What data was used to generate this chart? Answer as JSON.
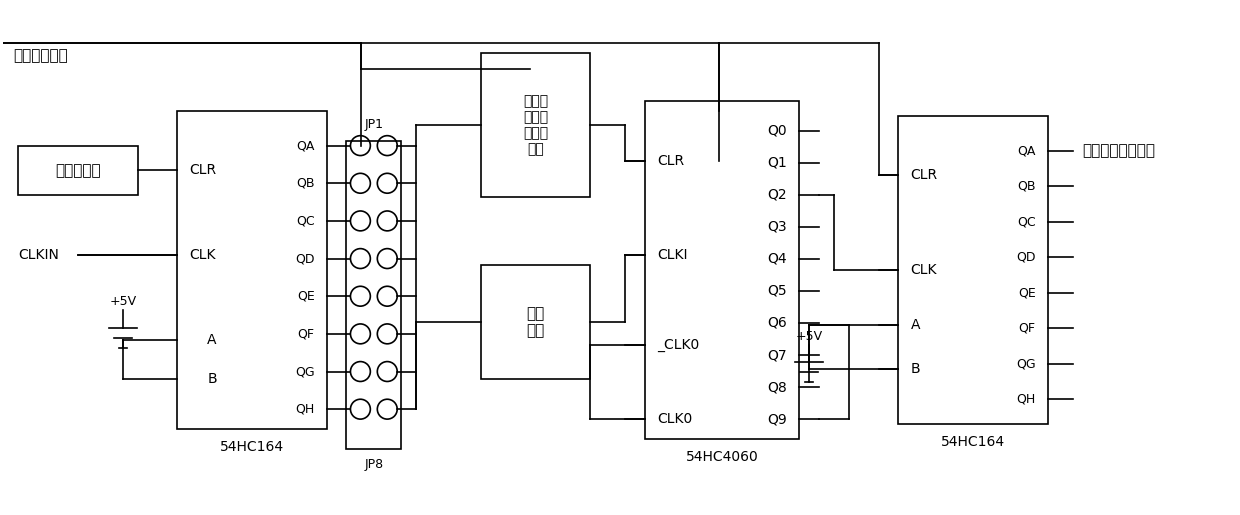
{
  "bg_color": "#ffffff",
  "line_color": "#000000",
  "fig_width": 12.4,
  "fig_height": 5.15,
  "dpi": 100,
  "font_size": 9,
  "labels": {
    "power_on_reset": "上电复位信号",
    "software_write": "软件写操作",
    "clkin": "CLKIN",
    "clr_logic": "清除看\n门狗信\n号合并\n逻辑",
    "rc_network": "阻容\n网络",
    "jp1": "JP1",
    "jp8": "JP8",
    "vcc1": "+5V",
    "vcc2": "+5V",
    "chip1_name": "54HC164",
    "chip2_name": "54HC4060",
    "chip3_name": "54HC164",
    "output_sig": "二次狗咬切机指令",
    "chip1_left": [
      "CLR",
      "CLK",
      "A",
      "B"
    ],
    "chip1_right": [
      "QA",
      "QB",
      "QC",
      "QD",
      "QE",
      "QF",
      "QG",
      "QH"
    ],
    "chip2_left": [
      "CLR",
      "CLKI",
      "_CLK0",
      "CLK0"
    ],
    "chip2_right": [
      "Q0",
      "Q1",
      "Q2",
      "Q3",
      "Q4",
      "Q5",
      "Q6",
      "Q7",
      "Q8",
      "Q9"
    ],
    "chip3_left": [
      "CLR",
      "CLK",
      "A",
      "B"
    ],
    "chip3_right": [
      "QA",
      "QB",
      "QC",
      "QD",
      "QE",
      "QF",
      "QG",
      "QH"
    ]
  }
}
